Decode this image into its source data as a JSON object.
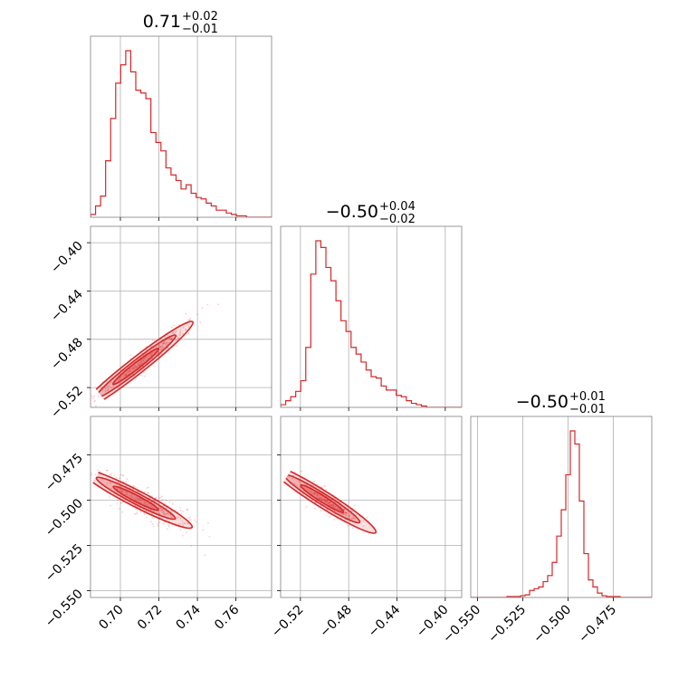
{
  "chart_data": {
    "type": "corner",
    "accent_color": "#d62728",
    "grid": true,
    "titles": [
      {
        "value": "0.71",
        "plus": "+0.02",
        "minus": "−0.01"
      },
      {
        "value": "−0.50",
        "plus": "+0.04",
        "minus": "−0.02"
      },
      {
        "value": "−0.50",
        "plus": "+0.01",
        "minus": "−0.01"
      }
    ],
    "params": [
      {
        "range": [
          0.6845,
          0.7785
        ],
        "ticks": [
          0.7,
          0.72,
          0.74,
          0.76
        ],
        "tick_labels": [
          "0.70",
          "0.72",
          "0.74",
          "0.76"
        ]
      },
      {
        "range": [
          -0.5364,
          -0.3864
        ],
        "ticks": [
          -0.52,
          -0.48,
          -0.44,
          -0.4
        ],
        "tick_labels": [
          "−0.52",
          "−0.48",
          "−0.44",
          "−0.40"
        ]
      },
      {
        "range": [
          -0.5537,
          -0.4537
        ],
        "ticks": [
          -0.55,
          -0.525,
          -0.5,
          -0.475
        ],
        "tick_labels": [
          "−0.550",
          "−0.525",
          "−0.500",
          "−0.475"
        ]
      }
    ],
    "histograms": [
      {
        "counts": [
          2,
          8,
          15,
          40,
          70,
          95,
          108,
          118,
          103,
          90,
          88,
          84,
          60,
          53,
          47,
          35,
          30,
          26,
          20,
          23,
          17,
          14,
          13,
          10,
          8,
          5,
          5,
          3,
          2,
          1,
          1,
          0,
          0,
          0,
          0,
          0
        ]
      },
      {
        "counts": [
          2,
          5,
          8,
          12,
          20,
          45,
          100,
          125,
          120,
          105,
          95,
          80,
          65,
          57,
          45,
          40,
          34,
          28,
          23,
          22,
          16,
          13,
          13,
          9,
          8,
          5,
          3,
          2,
          1,
          0,
          0,
          0,
          0,
          0,
          0,
          0
        ]
      },
      {
        "counts": [
          0,
          0,
          0,
          0,
          0,
          0,
          0,
          0,
          1,
          1,
          1,
          2,
          3,
          8,
          10,
          12,
          18,
          25,
          40,
          70,
          100,
          140,
          190,
          175,
          110,
          50,
          20,
          12,
          5,
          2,
          1,
          1,
          1,
          0,
          0,
          0,
          0,
          0,
          0,
          0
        ]
      }
    ],
    "scatter_panels": [
      {
        "row": 1,
        "col": 0,
        "center": [
          0.71,
          -0.5
        ],
        "slope": 1.25,
        "width": 0.004
      },
      {
        "row": 2,
        "col": 0,
        "center": [
          0.71,
          -0.5
        ],
        "slope": -0.55,
        "width": 0.004
      },
      {
        "row": 2,
        "col": 1,
        "center": [
          -0.5,
          -0.5
        ],
        "slope": -0.42,
        "width": 0.003
      }
    ]
  }
}
